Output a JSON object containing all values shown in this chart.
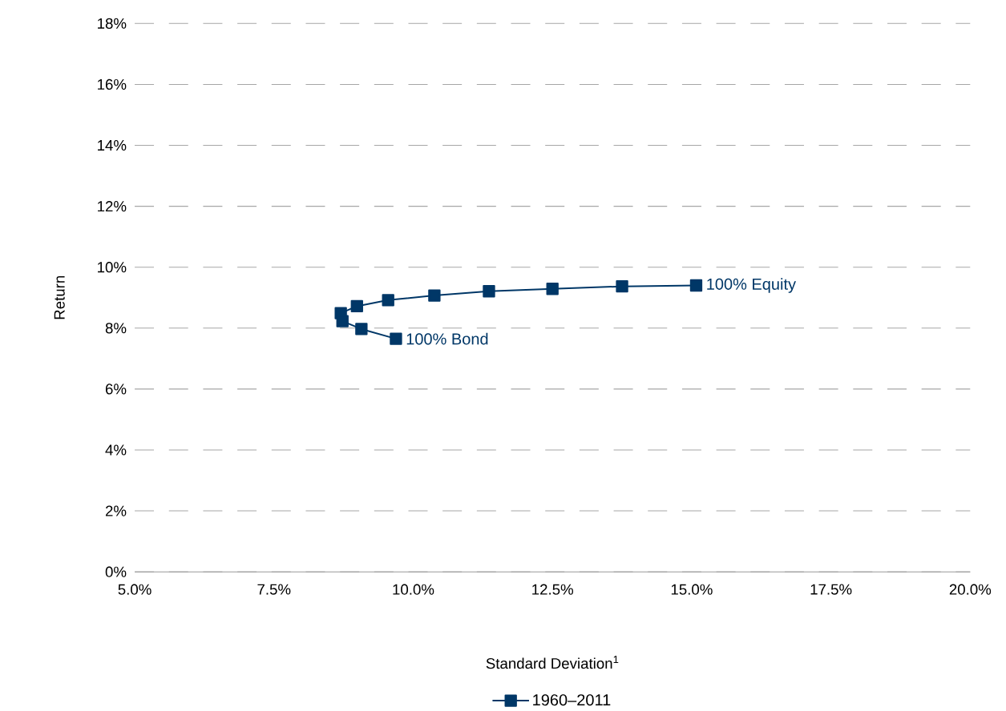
{
  "chart_data": {
    "type": "line",
    "xlabel": "Standard Deviation$^{1}$",
    "ylabel": "Return",
    "x": [
      15.08,
      13.75,
      12.5,
      11.36,
      10.38,
      9.55,
      8.99,
      8.7,
      8.73,
      9.07,
      9.69
    ],
    "series": [
      {
        "name": "1960–2011",
        "color": "#003767",
        "values": [
          9.4,
          9.37,
          9.29,
          9.21,
          9.07,
          8.92,
          8.72,
          8.49,
          8.23,
          7.97,
          7.65
        ]
      }
    ],
    "xlim": [
      5,
      20
    ],
    "ylim": [
      0,
      18
    ],
    "xticks": [
      {
        "value": 5,
        "label": "5.0%"
      },
      {
        "value": 7.5,
        "label": "7.5%"
      },
      {
        "value": 10,
        "label": "10.0%"
      },
      {
        "value": 12.5,
        "label": "12.5%"
      },
      {
        "value": 15,
        "label": "15.0%"
      },
      {
        "value": 17.5,
        "label": "17.5%"
      },
      {
        "value": 20,
        "label": "20.0%"
      }
    ],
    "yticks": [
      {
        "value": 0,
        "label": "0%"
      },
      {
        "value": 2,
        "label": "2%"
      },
      {
        "value": 4,
        "label": "4%"
      },
      {
        "value": 6,
        "label": "6%"
      },
      {
        "value": 8,
        "label": "8%"
      },
      {
        "value": 10,
        "label": "10%"
      },
      {
        "value": 12,
        "label": "12%"
      },
      {
        "value": 14,
        "label": "14%"
      },
      {
        "value": 16,
        "label": "16%"
      },
      {
        "value": 18,
        "label": "18%"
      }
    ],
    "annotations": [
      {
        "text": "100% Equity",
        "x": 15.08,
        "y": 9.4
      },
      {
        "text": "100% Bond",
        "x": 9.69,
        "y": 7.65
      }
    ],
    "grid": "y",
    "legend": "bottom",
    "marker": "square",
    "line_style": "solid"
  }
}
